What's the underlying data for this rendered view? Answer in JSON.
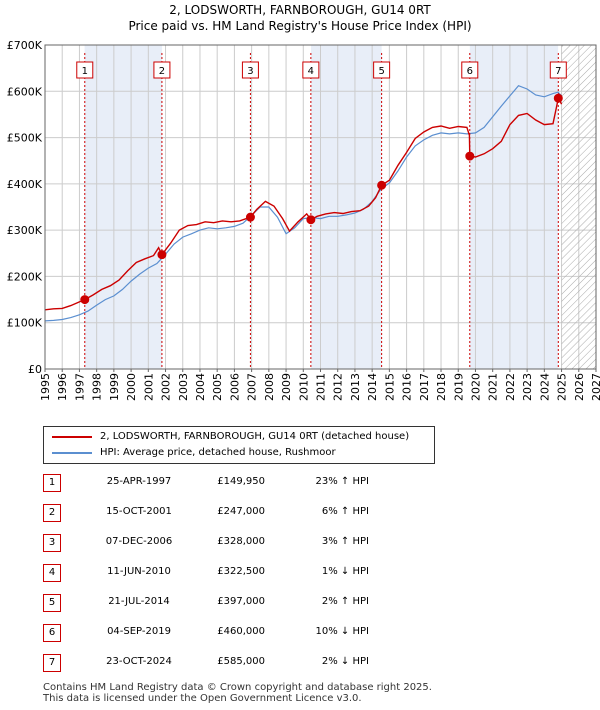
{
  "title": "2, LODSWORTH, FARNBOROUGH, GU14 0RT",
  "subtitle": "Price paid vs. HM Land Registry's House Price Index (HPI)",
  "colors": {
    "property": "#cc0000",
    "hpi": "#5b8fd0",
    "grid": "#cccccc",
    "band": "#e8eef8"
  },
  "legend": {
    "property": "2, LODSWORTH, FARNBOROUGH, GU14 0RT (detached house)",
    "hpi": "HPI: Average price, detached house, Rushmoor"
  },
  "sales": [
    {
      "num": "1",
      "date": "25-APR-1997",
      "price": "£149,950",
      "hpi": "23% ↑ HPI"
    },
    {
      "num": "2",
      "date": "15-OCT-2001",
      "price": "£247,000",
      "hpi": "6% ↑ HPI"
    },
    {
      "num": "3",
      "date": "07-DEC-2006",
      "price": "£328,000",
      "hpi": "3% ↑ HPI"
    },
    {
      "num": "4",
      "date": "11-JUN-2010",
      "price": "£322,500",
      "hpi": "1% ↓ HPI"
    },
    {
      "num": "5",
      "date": "21-JUL-2014",
      "price": "£397,000",
      "hpi": "2% ↑ HPI"
    },
    {
      "num": "6",
      "date": "04-SEP-2019",
      "price": "£460,000",
      "hpi": "10% ↓ HPI"
    },
    {
      "num": "7",
      "date": "23-OCT-2024",
      "price": "£585,000",
      "hpi": "2% ↓ HPI"
    }
  ],
  "footer": {
    "line1": "Contains HM Land Registry data © Crown copyright and database right 2025.",
    "line2": "This data is licensed under the Open Government Licence v3.0."
  },
  "chart_data": {
    "type": "line",
    "xlim": [
      1995,
      2027
    ],
    "ylim": [
      0,
      700000
    ],
    "y_ticks": [
      {
        "value": 0,
        "label": "£0"
      },
      {
        "value": 100000,
        "label": "£100K"
      },
      {
        "value": 200000,
        "label": "£200K"
      },
      {
        "value": 300000,
        "label": "£300K"
      },
      {
        "value": 400000,
        "label": "£400K"
      },
      {
        "value": 500000,
        "label": "£500K"
      },
      {
        "value": 600000,
        "label": "£600K"
      },
      {
        "value": 700000,
        "label": "£700K"
      }
    ],
    "x_ticks": [
      "1995",
      "1996",
      "1997",
      "1998",
      "1999",
      "2000",
      "2001",
      "2002",
      "2003",
      "2004",
      "2005",
      "2006",
      "2007",
      "2008",
      "2009",
      "2010",
      "2011",
      "2012",
      "2013",
      "2014",
      "2015",
      "2016",
      "2017",
      "2018",
      "2019",
      "2020",
      "2021",
      "2022",
      "2023",
      "2024",
      "2025",
      "2026",
      "2027"
    ],
    "grid": true,
    "forecast_hatch_from": 2025.0,
    "sale_bands": [
      [
        1997.3,
        2001.8
      ],
      [
        2010.45,
        2014.55
      ],
      [
        2019.67,
        2024.8
      ]
    ],
    "markers": [
      {
        "label": "1",
        "x": 1997.31,
        "y": 149950
      },
      {
        "label": "2",
        "x": 2001.79,
        "y": 247000
      },
      {
        "label": "3",
        "x": 2006.93,
        "y": 328000
      },
      {
        "label": "4",
        "x": 2010.44,
        "y": 322500
      },
      {
        "label": "5",
        "x": 2014.55,
        "y": 397000
      },
      {
        "label": "6",
        "x": 2019.67,
        "y": 460000
      },
      {
        "label": "7",
        "x": 2024.81,
        "y": 585000
      }
    ],
    "series": [
      {
        "name": "2, LODSWORTH, FARNBOROUGH, GU14 0RT (detached house)",
        "points": [
          [
            1995.0,
            128000
          ],
          [
            1995.5,
            130000
          ],
          [
            1996.0,
            131000
          ],
          [
            1996.5,
            137000
          ],
          [
            1997.0,
            145000
          ],
          [
            1997.31,
            149950
          ],
          [
            1997.8,
            160000
          ],
          [
            1998.3,
            172000
          ],
          [
            1998.8,
            180000
          ],
          [
            1999.3,
            192000
          ],
          [
            1999.8,
            212000
          ],
          [
            2000.3,
            230000
          ],
          [
            2000.8,
            238000
          ],
          [
            2001.3,
            245000
          ],
          [
            2001.6,
            262000
          ],
          [
            2001.79,
            247000
          ],
          [
            2002.3,
            272000
          ],
          [
            2002.8,
            300000
          ],
          [
            2003.3,
            310000
          ],
          [
            2003.8,
            312000
          ],
          [
            2004.3,
            318000
          ],
          [
            2004.8,
            316000
          ],
          [
            2005.3,
            320000
          ],
          [
            2005.8,
            318000
          ],
          [
            2006.3,
            320000
          ],
          [
            2006.93,
            328000
          ],
          [
            2007.3,
            345000
          ],
          [
            2007.8,
            362000
          ],
          [
            2008.3,
            352000
          ],
          [
            2008.8,
            325000
          ],
          [
            2009.2,
            298000
          ],
          [
            2009.7,
            318000
          ],
          [
            2010.2,
            335000
          ],
          [
            2010.44,
            322500
          ],
          [
            2010.8,
            330000
          ],
          [
            2011.3,
            335000
          ],
          [
            2011.8,
            338000
          ],
          [
            2012.3,
            336000
          ],
          [
            2012.8,
            340000
          ],
          [
            2013.3,
            342000
          ],
          [
            2013.8,
            352000
          ],
          [
            2014.2,
            370000
          ],
          [
            2014.55,
            397000
          ],
          [
            2015.0,
            408000
          ],
          [
            2015.5,
            440000
          ],
          [
            2016.0,
            468000
          ],
          [
            2016.5,
            498000
          ],
          [
            2017.0,
            512000
          ],
          [
            2017.5,
            522000
          ],
          [
            2018.0,
            525000
          ],
          [
            2018.5,
            520000
          ],
          [
            2019.0,
            524000
          ],
          [
            2019.5,
            522000
          ],
          [
            2019.65,
            505000
          ],
          [
            2019.67,
            460000
          ],
          [
            2020.0,
            458000
          ],
          [
            2020.5,
            465000
          ],
          [
            2021.0,
            476000
          ],
          [
            2021.5,
            492000
          ],
          [
            2022.0,
            528000
          ],
          [
            2022.5,
            548000
          ],
          [
            2023.0,
            552000
          ],
          [
            2023.5,
            538000
          ],
          [
            2024.0,
            528000
          ],
          [
            2024.5,
            530000
          ],
          [
            2024.7,
            565000
          ],
          [
            2024.81,
            585000
          ],
          [
            2025.0,
            572000
          ]
        ]
      },
      {
        "name": "HPI: Average price, detached house, Rushmoor",
        "points": [
          [
            1995.0,
            104000
          ],
          [
            1995.5,
            105000
          ],
          [
            1996.0,
            107000
          ],
          [
            1996.5,
            111000
          ],
          [
            1997.0,
            117000
          ],
          [
            1997.5,
            125000
          ],
          [
            1998.0,
            138000
          ],
          [
            1998.5,
            150000
          ],
          [
            1999.0,
            158000
          ],
          [
            1999.5,
            172000
          ],
          [
            2000.0,
            190000
          ],
          [
            2000.5,
            205000
          ],
          [
            2001.0,
            218000
          ],
          [
            2001.5,
            228000
          ],
          [
            2002.0,
            248000
          ],
          [
            2002.5,
            270000
          ],
          [
            2003.0,
            285000
          ],
          [
            2003.5,
            292000
          ],
          [
            2004.0,
            300000
          ],
          [
            2004.5,
            305000
          ],
          [
            2005.0,
            303000
          ],
          [
            2005.5,
            305000
          ],
          [
            2006.0,
            308000
          ],
          [
            2006.5,
            315000
          ],
          [
            2007.0,
            332000
          ],
          [
            2007.5,
            350000
          ],
          [
            2008.0,
            350000
          ],
          [
            2008.5,
            328000
          ],
          [
            2009.0,
            292000
          ],
          [
            2009.5,
            305000
          ],
          [
            2010.0,
            325000
          ],
          [
            2010.5,
            327000
          ],
          [
            2011.0,
            325000
          ],
          [
            2011.5,
            330000
          ],
          [
            2012.0,
            330000
          ],
          [
            2012.5,
            333000
          ],
          [
            2013.0,
            337000
          ],
          [
            2013.5,
            345000
          ],
          [
            2014.0,
            362000
          ],
          [
            2014.5,
            388000
          ],
          [
            2015.0,
            402000
          ],
          [
            2015.5,
            428000
          ],
          [
            2016.0,
            458000
          ],
          [
            2016.5,
            482000
          ],
          [
            2017.0,
            495000
          ],
          [
            2017.5,
            505000
          ],
          [
            2018.0,
            510000
          ],
          [
            2018.5,
            508000
          ],
          [
            2019.0,
            510000
          ],
          [
            2019.5,
            508000
          ],
          [
            2020.0,
            510000
          ],
          [
            2020.5,
            522000
          ],
          [
            2021.0,
            545000
          ],
          [
            2021.5,
            568000
          ],
          [
            2022.0,
            590000
          ],
          [
            2022.5,
            612000
          ],
          [
            2023.0,
            605000
          ],
          [
            2023.5,
            592000
          ],
          [
            2024.0,
            588000
          ],
          [
            2024.5,
            595000
          ],
          [
            2024.8,
            598000
          ],
          [
            2025.0,
            590000
          ]
        ]
      }
    ]
  }
}
